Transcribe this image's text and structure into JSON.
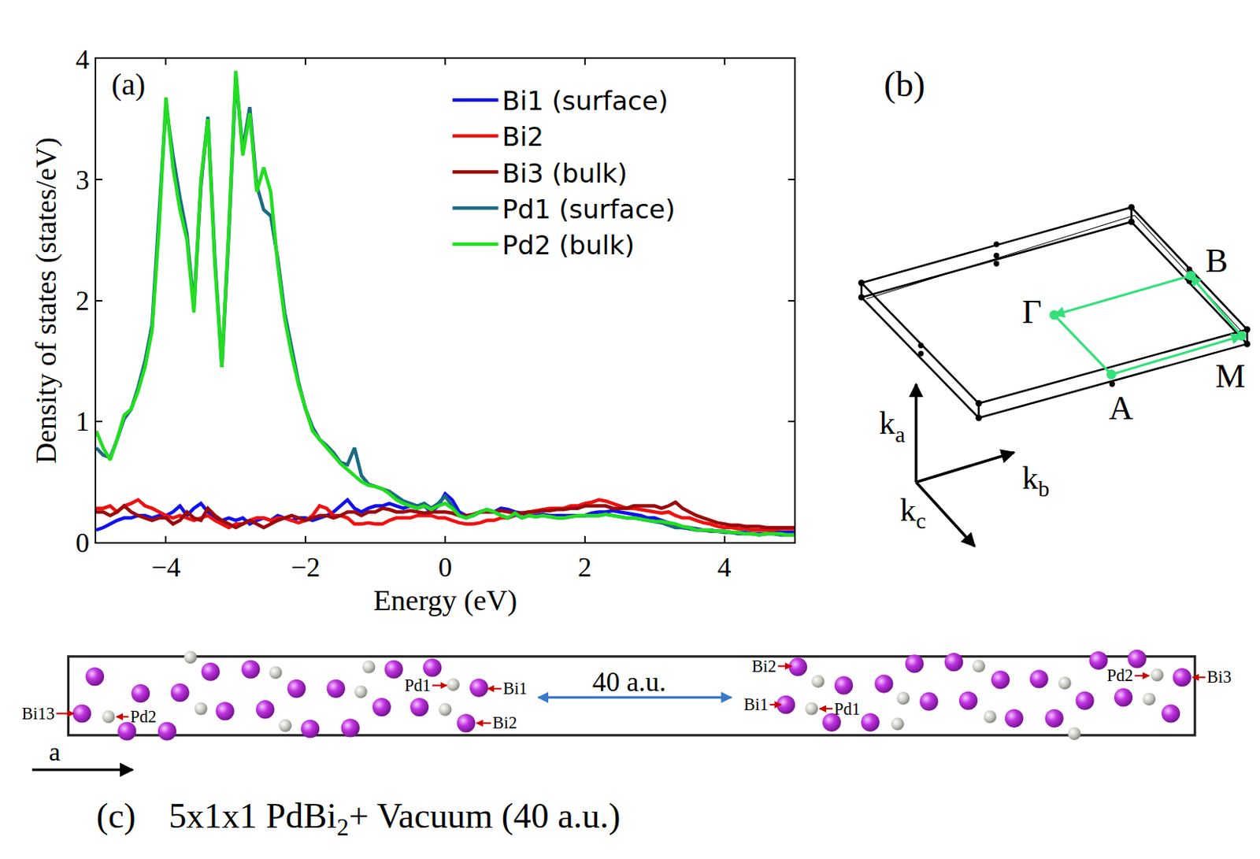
{
  "chart_data": {
    "type": "line",
    "label": "(a)",
    "x_label": "Energy (eV)",
    "y_label": "Density of states (states/eV)",
    "xlim": [
      -5,
      5
    ],
    "ylim": [
      0,
      4
    ],
    "xticks": [
      -4,
      -2,
      0,
      2,
      4
    ],
    "yticks": [
      0,
      1,
      2,
      3,
      4
    ],
    "grid": false,
    "legend": "upper right",
    "x": [
      -5,
      -4.9,
      -4.8,
      -4.7,
      -4.6,
      -4.5,
      -4.4,
      -4.3,
      -4.2,
      -4.1,
      -4,
      -3.9,
      -3.8,
      -3.7,
      -3.6,
      -3.5,
      -3.4,
      -3.3,
      -3.2,
      -3.1,
      -3,
      -2.9,
      -2.8,
      -2.7,
      -2.6,
      -2.5,
      -2.4,
      -2.3,
      -2.2,
      -2.1,
      -2,
      -1.9,
      -1.8,
      -1.7,
      -1.6,
      -1.5,
      -1.4,
      -1.3,
      -1.2,
      -1.1,
      -1,
      -0.9,
      -0.8,
      -0.7,
      -0.6,
      -0.5,
      -0.4,
      -0.3,
      -0.2,
      -0.1,
      0,
      0.1,
      0.2,
      0.3,
      0.4,
      0.5,
      0.6,
      0.7,
      0.8,
      0.9,
      1,
      1.1,
      1.2,
      1.3,
      1.4,
      1.5,
      1.6,
      1.7,
      1.8,
      1.9,
      2,
      2.1,
      2.2,
      2.3,
      2.4,
      2.5,
      2.6,
      2.7,
      2.8,
      2.9,
      3,
      3.1,
      3.2,
      3.3,
      3.4,
      3.5,
      3.6,
      3.7,
      3.8,
      3.9,
      4,
      4.1,
      4.2,
      4.3,
      4.4,
      4.5,
      4.6,
      4.7,
      4.8,
      4.9,
      5
    ],
    "series": [
      {
        "name": "Bi1 (surface)",
        "color": "#1111ee",
        "values": [
          0.1,
          0.12,
          0.15,
          0.18,
          0.2,
          0.2,
          0.22,
          0.22,
          0.2,
          0.22,
          0.22,
          0.25,
          0.3,
          0.22,
          0.28,
          0.32,
          0.25,
          0.2,
          0.18,
          0.2,
          0.18,
          0.2,
          0.15,
          0.18,
          0.2,
          0.18,
          0.22,
          0.2,
          0.18,
          0.2,
          0.2,
          0.18,
          0.2,
          0.22,
          0.25,
          0.3,
          0.35,
          0.28,
          0.25,
          0.28,
          0.3,
          0.3,
          0.32,
          0.3,
          0.28,
          0.3,
          0.28,
          0.3,
          0.25,
          0.3,
          0.4,
          0.35,
          0.25,
          0.22,
          0.22,
          0.25,
          0.26,
          0.25,
          0.28,
          0.27,
          0.25,
          0.24,
          0.22,
          0.22,
          0.23,
          0.22,
          0.22,
          0.22,
          0.22,
          0.22,
          0.22,
          0.24,
          0.25,
          0.25,
          0.26,
          0.25,
          0.24,
          0.23,
          0.22,
          0.2,
          0.2,
          0.18,
          0.16,
          0.13,
          0.12,
          0.12,
          0.11,
          0.1,
          0.1,
          0.09,
          0.09,
          0.08,
          0.08,
          0.08,
          0.07,
          0.07,
          0.07,
          0.08,
          0.08,
          0.08,
          0.08
        ]
      },
      {
        "name": "Bi2",
        "color": "#ee1111",
        "values": [
          0.28,
          0.28,
          0.3,
          0.25,
          0.3,
          0.32,
          0.35,
          0.3,
          0.28,
          0.25,
          0.22,
          0.2,
          0.22,
          0.2,
          0.18,
          0.2,
          0.22,
          0.18,
          0.15,
          0.12,
          0.15,
          0.15,
          0.18,
          0.2,
          0.2,
          0.18,
          0.2,
          0.2,
          0.18,
          0.16,
          0.18,
          0.22,
          0.3,
          0.28,
          0.22,
          0.22,
          0.2,
          0.15,
          0.15,
          0.16,
          0.15,
          0.15,
          0.18,
          0.2,
          0.2,
          0.2,
          0.22,
          0.22,
          0.22,
          0.2,
          0.2,
          0.18,
          0.16,
          0.15,
          0.15,
          0.16,
          0.18,
          0.18,
          0.2,
          0.2,
          0.22,
          0.24,
          0.25,
          0.26,
          0.27,
          0.28,
          0.28,
          0.28,
          0.3,
          0.3,
          0.32,
          0.33,
          0.35,
          0.34,
          0.32,
          0.3,
          0.28,
          0.28,
          0.27,
          0.26,
          0.25,
          0.24,
          0.25,
          0.22,
          0.2,
          0.2,
          0.18,
          0.16,
          0.15,
          0.13,
          0.12,
          0.12,
          0.11,
          0.11,
          0.1,
          0.1,
          0.1,
          0.1,
          0.11,
          0.11,
          0.11
        ]
      },
      {
        "name": "Bi3 (bulk)",
        "color": "#9b0a0a",
        "values": [
          0.25,
          0.25,
          0.22,
          0.25,
          0.3,
          0.25,
          0.22,
          0.2,
          0.18,
          0.2,
          0.2,
          0.15,
          0.18,
          0.25,
          0.2,
          0.18,
          0.28,
          0.22,
          0.18,
          0.15,
          0.12,
          0.15,
          0.18,
          0.15,
          0.12,
          0.15,
          0.18,
          0.2,
          0.22,
          0.2,
          0.18,
          0.2,
          0.22,
          0.22,
          0.2,
          0.22,
          0.25,
          0.25,
          0.22,
          0.25,
          0.25,
          0.28,
          0.27,
          0.25,
          0.25,
          0.26,
          0.25,
          0.24,
          0.25,
          0.25,
          0.25,
          0.24,
          0.22,
          0.22,
          0.23,
          0.25,
          0.25,
          0.25,
          0.26,
          0.25,
          0.24,
          0.24,
          0.25,
          0.25,
          0.26,
          0.26,
          0.27,
          0.27,
          0.28,
          0.28,
          0.3,
          0.3,
          0.3,
          0.3,
          0.28,
          0.28,
          0.28,
          0.3,
          0.3,
          0.3,
          0.3,
          0.28,
          0.3,
          0.33,
          0.28,
          0.25,
          0.22,
          0.2,
          0.18,
          0.16,
          0.15,
          0.14,
          0.14,
          0.13,
          0.13,
          0.13,
          0.12,
          0.12,
          0.12,
          0.12,
          0.12
        ]
      },
      {
        "name": "Pd1 (surface)",
        "color": "#1b6a82",
        "values": [
          0.78,
          0.72,
          0.7,
          0.85,
          1.02,
          1.1,
          1.28,
          1.5,
          1.8,
          2.7,
          3.62,
          3.2,
          2.85,
          2.55,
          1.95,
          2.95,
          3.52,
          2.35,
          1.45,
          2.55,
          3.85,
          3.25,
          3.6,
          2.95,
          2.75,
          2.7,
          2.35,
          1.9,
          1.6,
          1.32,
          1.1,
          0.95,
          0.85,
          0.8,
          0.74,
          0.66,
          0.64,
          0.78,
          0.55,
          0.48,
          0.46,
          0.44,
          0.42,
          0.38,
          0.34,
          0.32,
          0.3,
          0.32,
          0.28,
          0.32,
          0.38,
          0.3,
          0.22,
          0.2,
          0.22,
          0.25,
          0.27,
          0.25,
          0.22,
          0.2,
          0.23,
          0.2,
          0.22,
          0.21,
          0.22,
          0.21,
          0.2,
          0.2,
          0.21,
          0.22,
          0.22,
          0.22,
          0.22,
          0.23,
          0.22,
          0.21,
          0.2,
          0.2,
          0.19,
          0.18,
          0.17,
          0.16,
          0.14,
          0.12,
          0.12,
          0.11,
          0.1,
          0.1,
          0.09,
          0.09,
          0.08,
          0.08,
          0.07,
          0.07,
          0.07,
          0.06,
          0.07,
          0.07,
          0.06,
          0.06,
          0.06
        ]
      },
      {
        "name": "Pd2 (bulk)",
        "color": "#22dd22",
        "values": [
          0.92,
          0.78,
          0.68,
          0.85,
          1.05,
          1.1,
          1.25,
          1.45,
          1.75,
          2.6,
          3.68,
          3.1,
          2.75,
          2.5,
          1.9,
          3.0,
          3.5,
          2.3,
          1.45,
          2.6,
          3.9,
          3.2,
          3.55,
          2.9,
          3.1,
          2.9,
          2.3,
          1.85,
          1.55,
          1.3,
          1.1,
          0.92,
          0.85,
          0.78,
          0.72,
          0.65,
          0.6,
          0.55,
          0.5,
          0.47,
          0.46,
          0.44,
          0.4,
          0.35,
          0.32,
          0.3,
          0.28,
          0.3,
          0.27,
          0.3,
          0.32,
          0.28,
          0.22,
          0.2,
          0.22,
          0.25,
          0.27,
          0.25,
          0.22,
          0.2,
          0.24,
          0.2,
          0.22,
          0.21,
          0.22,
          0.21,
          0.2,
          0.2,
          0.21,
          0.22,
          0.22,
          0.22,
          0.22,
          0.23,
          0.22,
          0.21,
          0.2,
          0.2,
          0.19,
          0.18,
          0.17,
          0.17,
          0.16,
          0.15,
          0.13,
          0.12,
          0.1,
          0.1,
          0.1,
          0.09,
          0.09,
          0.08,
          0.08,
          0.07,
          0.07,
          0.06,
          0.07,
          0.07,
          0.07,
          0.06,
          0.06
        ]
      }
    ]
  },
  "panel_b": {
    "label": "(b)",
    "points": [
      "Γ",
      "A",
      "M",
      "B"
    ],
    "path": [
      "Γ",
      "A",
      "M",
      "B",
      "Γ"
    ],
    "axes": [
      {
        "symbol": "k",
        "subscript": "a"
      },
      {
        "symbol": "k",
        "subscript": "b"
      },
      {
        "symbol": "k",
        "subscript": "c"
      }
    ]
  },
  "panel_c": {
    "label": "(c)",
    "caption": {
      "text": "5x1x1 PdBi",
      "subscript": "2",
      "text_after": "+ Vacuum (40 a.u.)"
    },
    "vacuum_label": "40 a.u.",
    "axis_label": "a",
    "atom_labels": [
      "Bi13",
      "Pd2",
      "Pd1",
      "Bi1",
      "Bi2",
      "Bi2",
      "Bi1",
      "Pd1",
      "Pd2",
      "Bi3"
    ]
  }
}
